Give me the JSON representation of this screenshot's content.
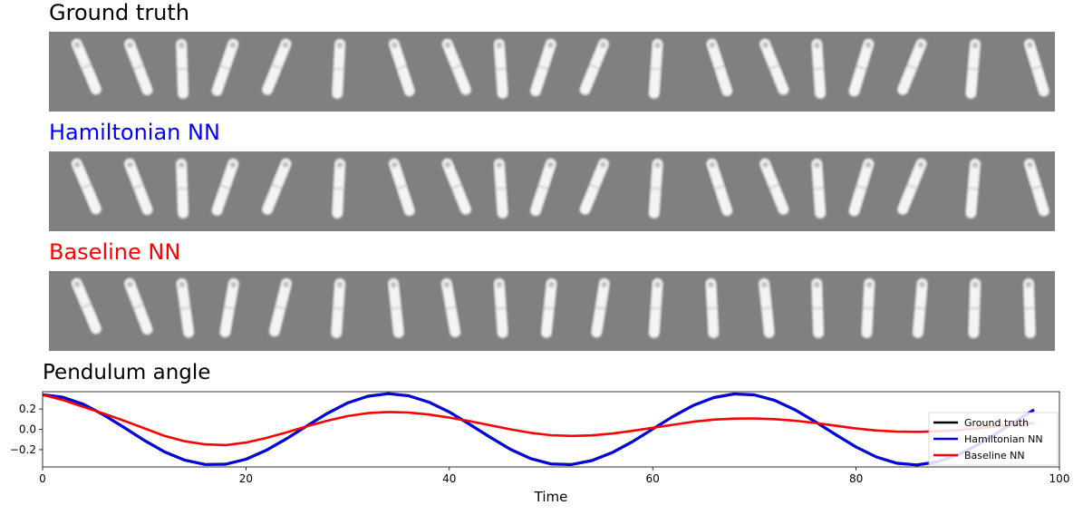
{
  "panels": {
    "ground_truth": {
      "title": "Ground truth",
      "title_color": "#000000",
      "angles_deg": [
        -23,
        -21,
        -2,
        19,
        22,
        3,
        -18,
        -22,
        -4,
        18,
        22,
        4,
        -18,
        -22,
        -4,
        17,
        22,
        5,
        -17
      ]
    },
    "hamiltonian": {
      "title": "Hamiltonian NN",
      "title_color": "#0000ff",
      "angles_deg": [
        -23,
        -21,
        -2,
        19,
        22,
        3,
        -18,
        -22,
        -4,
        18,
        22,
        4,
        -18,
        -22,
        -4,
        17,
        22,
        5,
        -17
      ]
    },
    "baseline": {
      "title": "Baseline NN",
      "title_color": "#ff0000",
      "angles_deg": [
        -23,
        -21,
        -8,
        10,
        14,
        4,
        -6,
        -10,
        -4,
        6,
        9,
        4,
        -3,
        -6,
        -2,
        3,
        5,
        2,
        -2
      ]
    }
  },
  "chart_data": {
    "type": "line",
    "title": "Pendulum angle",
    "xlabel": "Time",
    "ylabel": "",
    "xlim": [
      0,
      100
    ],
    "ylim": [
      -0.37,
      0.37
    ],
    "xticks": [
      0,
      20,
      40,
      60,
      80,
      100
    ],
    "yticks": [
      -0.2,
      0.0,
      0.2
    ],
    "ytick_labels": [
      "−0.2",
      "0.0",
      "0.2"
    ],
    "grid": false,
    "legend_position": "right",
    "x": [
      0,
      2,
      4,
      6,
      8,
      10,
      12,
      14,
      16,
      18,
      20,
      22,
      24,
      26,
      28,
      30,
      32,
      34,
      36,
      38,
      40,
      42,
      44,
      46,
      48,
      50,
      52,
      54,
      56,
      58,
      60,
      62,
      64,
      66,
      68,
      70,
      72,
      74,
      76,
      78,
      80,
      82,
      84,
      86,
      88,
      90,
      92,
      94,
      96,
      97.5
    ],
    "series": [
      {
        "name": "Ground truth",
        "color": "#000000",
        "y": [
          0.34,
          0.316,
          0.247,
          0.143,
          0.019,
          -0.109,
          -0.222,
          -0.304,
          -0.346,
          -0.343,
          -0.294,
          -0.206,
          -0.092,
          0.034,
          0.157,
          0.259,
          0.325,
          0.35,
          0.33,
          0.267,
          0.17,
          0.049,
          -0.077,
          -0.196,
          -0.288,
          -0.341,
          -0.347,
          -0.308,
          -0.23,
          -0.122,
          0.003,
          0.127,
          0.235,
          0.312,
          0.348,
          0.339,
          0.284,
          0.192,
          0.074,
          -0.053,
          -0.174,
          -0.272,
          -0.333,
          -0.35,
          -0.32,
          -0.252,
          -0.151,
          -0.028,
          0.1,
          0.192
        ]
      },
      {
        "name": "Hamiltonian NN",
        "color": "#0000ff",
        "y": [
          0.34,
          0.316,
          0.247,
          0.143,
          0.019,
          -0.109,
          -0.222,
          -0.304,
          -0.346,
          -0.343,
          -0.294,
          -0.206,
          -0.092,
          0.034,
          0.157,
          0.259,
          0.325,
          0.35,
          0.33,
          0.267,
          0.17,
          0.049,
          -0.077,
          -0.196,
          -0.288,
          -0.341,
          -0.347,
          -0.308,
          -0.23,
          -0.122,
          0.003,
          0.127,
          0.235,
          0.312,
          0.348,
          0.339,
          0.284,
          0.192,
          0.074,
          -0.053,
          -0.174,
          -0.272,
          -0.333,
          -0.35,
          -0.32,
          -0.252,
          -0.151,
          -0.028,
          0.1,
          0.192
        ]
      },
      {
        "name": "Baseline NN",
        "color": "#ff0000",
        "y": [
          0.34,
          0.288,
          0.22,
          0.155,
          0.085,
          0.01,
          -0.065,
          -0.118,
          -0.148,
          -0.155,
          -0.13,
          -0.085,
          -0.03,
          0.03,
          0.085,
          0.13,
          0.16,
          0.17,
          0.165,
          0.145,
          0.115,
          0.08,
          0.04,
          0.0,
          -0.035,
          -0.058,
          -0.065,
          -0.06,
          -0.042,
          -0.015,
          0.015,
          0.045,
          0.075,
          0.095,
          0.105,
          0.107,
          0.1,
          0.085,
          0.062,
          0.035,
          0.008,
          -0.012,
          -0.022,
          -0.025,
          -0.02,
          -0.008,
          0.01,
          0.03,
          0.05,
          0.06
        ]
      }
    ]
  }
}
